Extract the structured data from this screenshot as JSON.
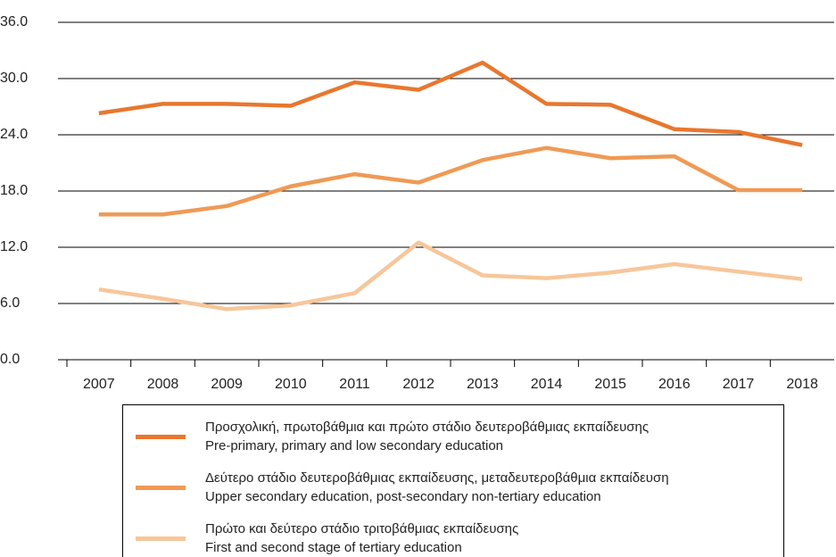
{
  "chart_data": {
    "type": "line",
    "categories": [
      "2007",
      "2008",
      "2009",
      "2010",
      "2011",
      "2012",
      "2013",
      "2014",
      "2015",
      "2016",
      "2017",
      "2018"
    ],
    "series": [
      {
        "name": "Προσχολική, πρωτοβάθμια και πρώτο στάδιο δευτεροβάθμιας εκπαίδευσης\nPre-primary, primary and low secondary education",
        "color": "#e8772e",
        "values": [
          26.3,
          27.3,
          27.3,
          27.1,
          29.6,
          28.8,
          31.7,
          27.3,
          27.2,
          24.6,
          24.3,
          22.9
        ]
      },
      {
        "name": "Δεύτερο στάδιο δευτεροβάθμιας εκπαίδευσης, μεταδευτεροβάθμια εκπαίδευση\nUpper secondary education, post-secondary non-tertiary education",
        "color": "#ef9a55",
        "values": [
          15.5,
          15.5,
          16.4,
          18.5,
          19.8,
          18.9,
          21.3,
          22.6,
          21.5,
          21.7,
          18.1,
          18.1
        ]
      },
      {
        "name": "Πρώτο και δεύτερο στάδιο τριτοβάθμιας εκπαίδευσης\nFirst and second stage of tertiary education",
        "color": "#f7c69a",
        "values": [
          7.5,
          6.5,
          5.4,
          5.8,
          7.1,
          12.5,
          9.0,
          8.7,
          9.3,
          10.2,
          9.4,
          8.6
        ]
      }
    ],
    "ylim": [
      0,
      36
    ],
    "yticks": [
      {
        "value": 0,
        "label": "0.0"
      },
      {
        "value": 6,
        "label": "6.0"
      },
      {
        "value": 12,
        "label": "12.0"
      },
      {
        "value": 18,
        "label": "18.0"
      },
      {
        "value": 24,
        "label": "24.0"
      },
      {
        "value": 30,
        "label": "30.0"
      },
      {
        "value": 36,
        "label": "36.0"
      }
    ],
    "grid": true
  }
}
